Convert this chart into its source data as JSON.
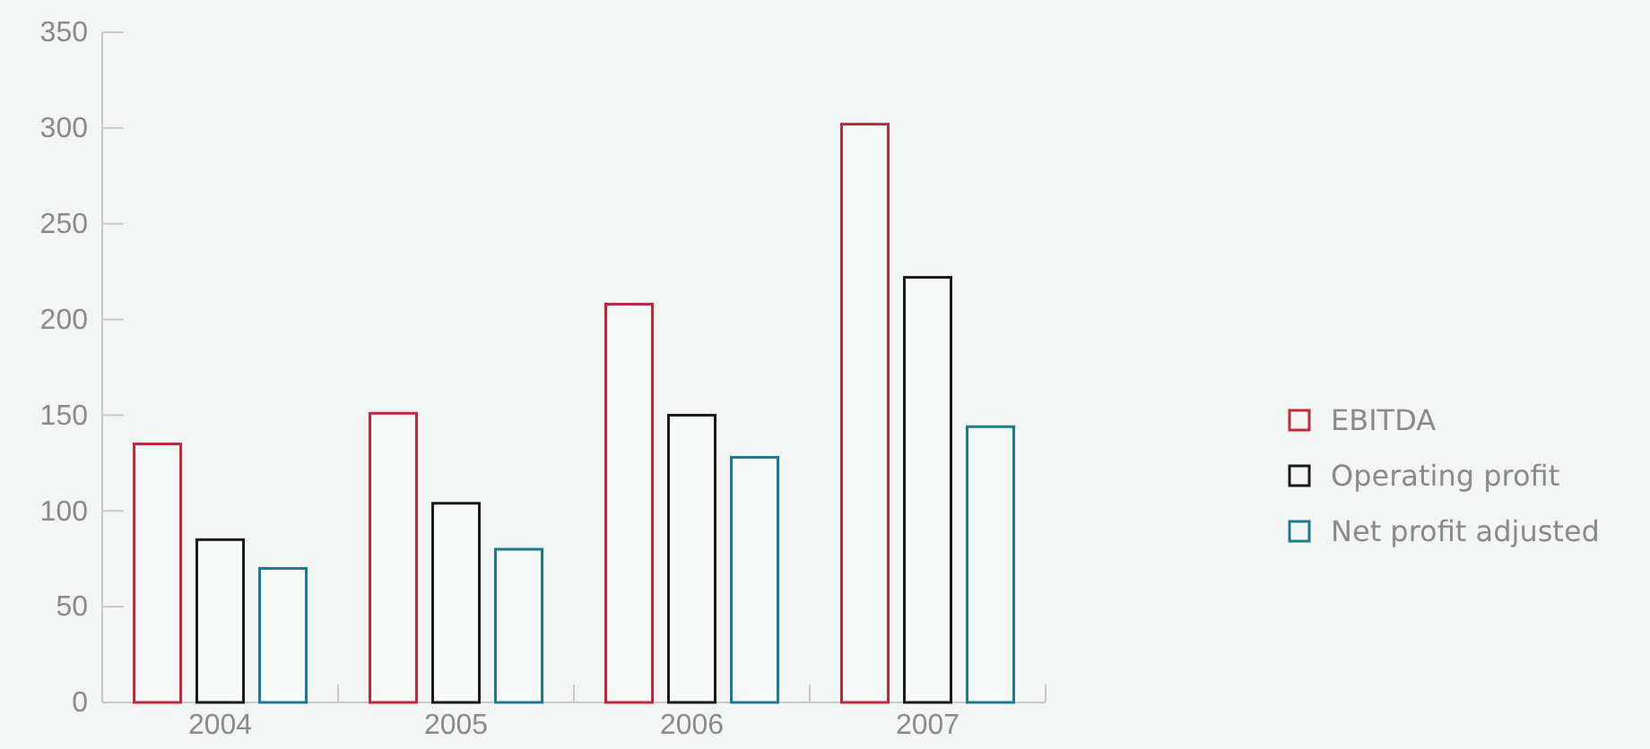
{
  "chart_data": {
    "type": "bar",
    "categories": [
      "2004",
      "2005",
      "2006",
      "2007"
    ],
    "series": [
      {
        "name": "EBITDA",
        "color": "#c0283e",
        "values": [
          135,
          151,
          208,
          302
        ]
      },
      {
        "name": "Operating profit",
        "color": "#1a1a1a",
        "values": [
          85,
          104,
          150,
          222
        ]
      },
      {
        "name": "Net profit adjusted",
        "color": "#1a7a90",
        "values": [
          70,
          80,
          128,
          144
        ]
      }
    ],
    "ylim": [
      0,
      350
    ],
    "yticks": [
      0,
      50,
      100,
      150,
      200,
      250,
      300,
      350
    ],
    "grid": false,
    "legend": "right"
  }
}
